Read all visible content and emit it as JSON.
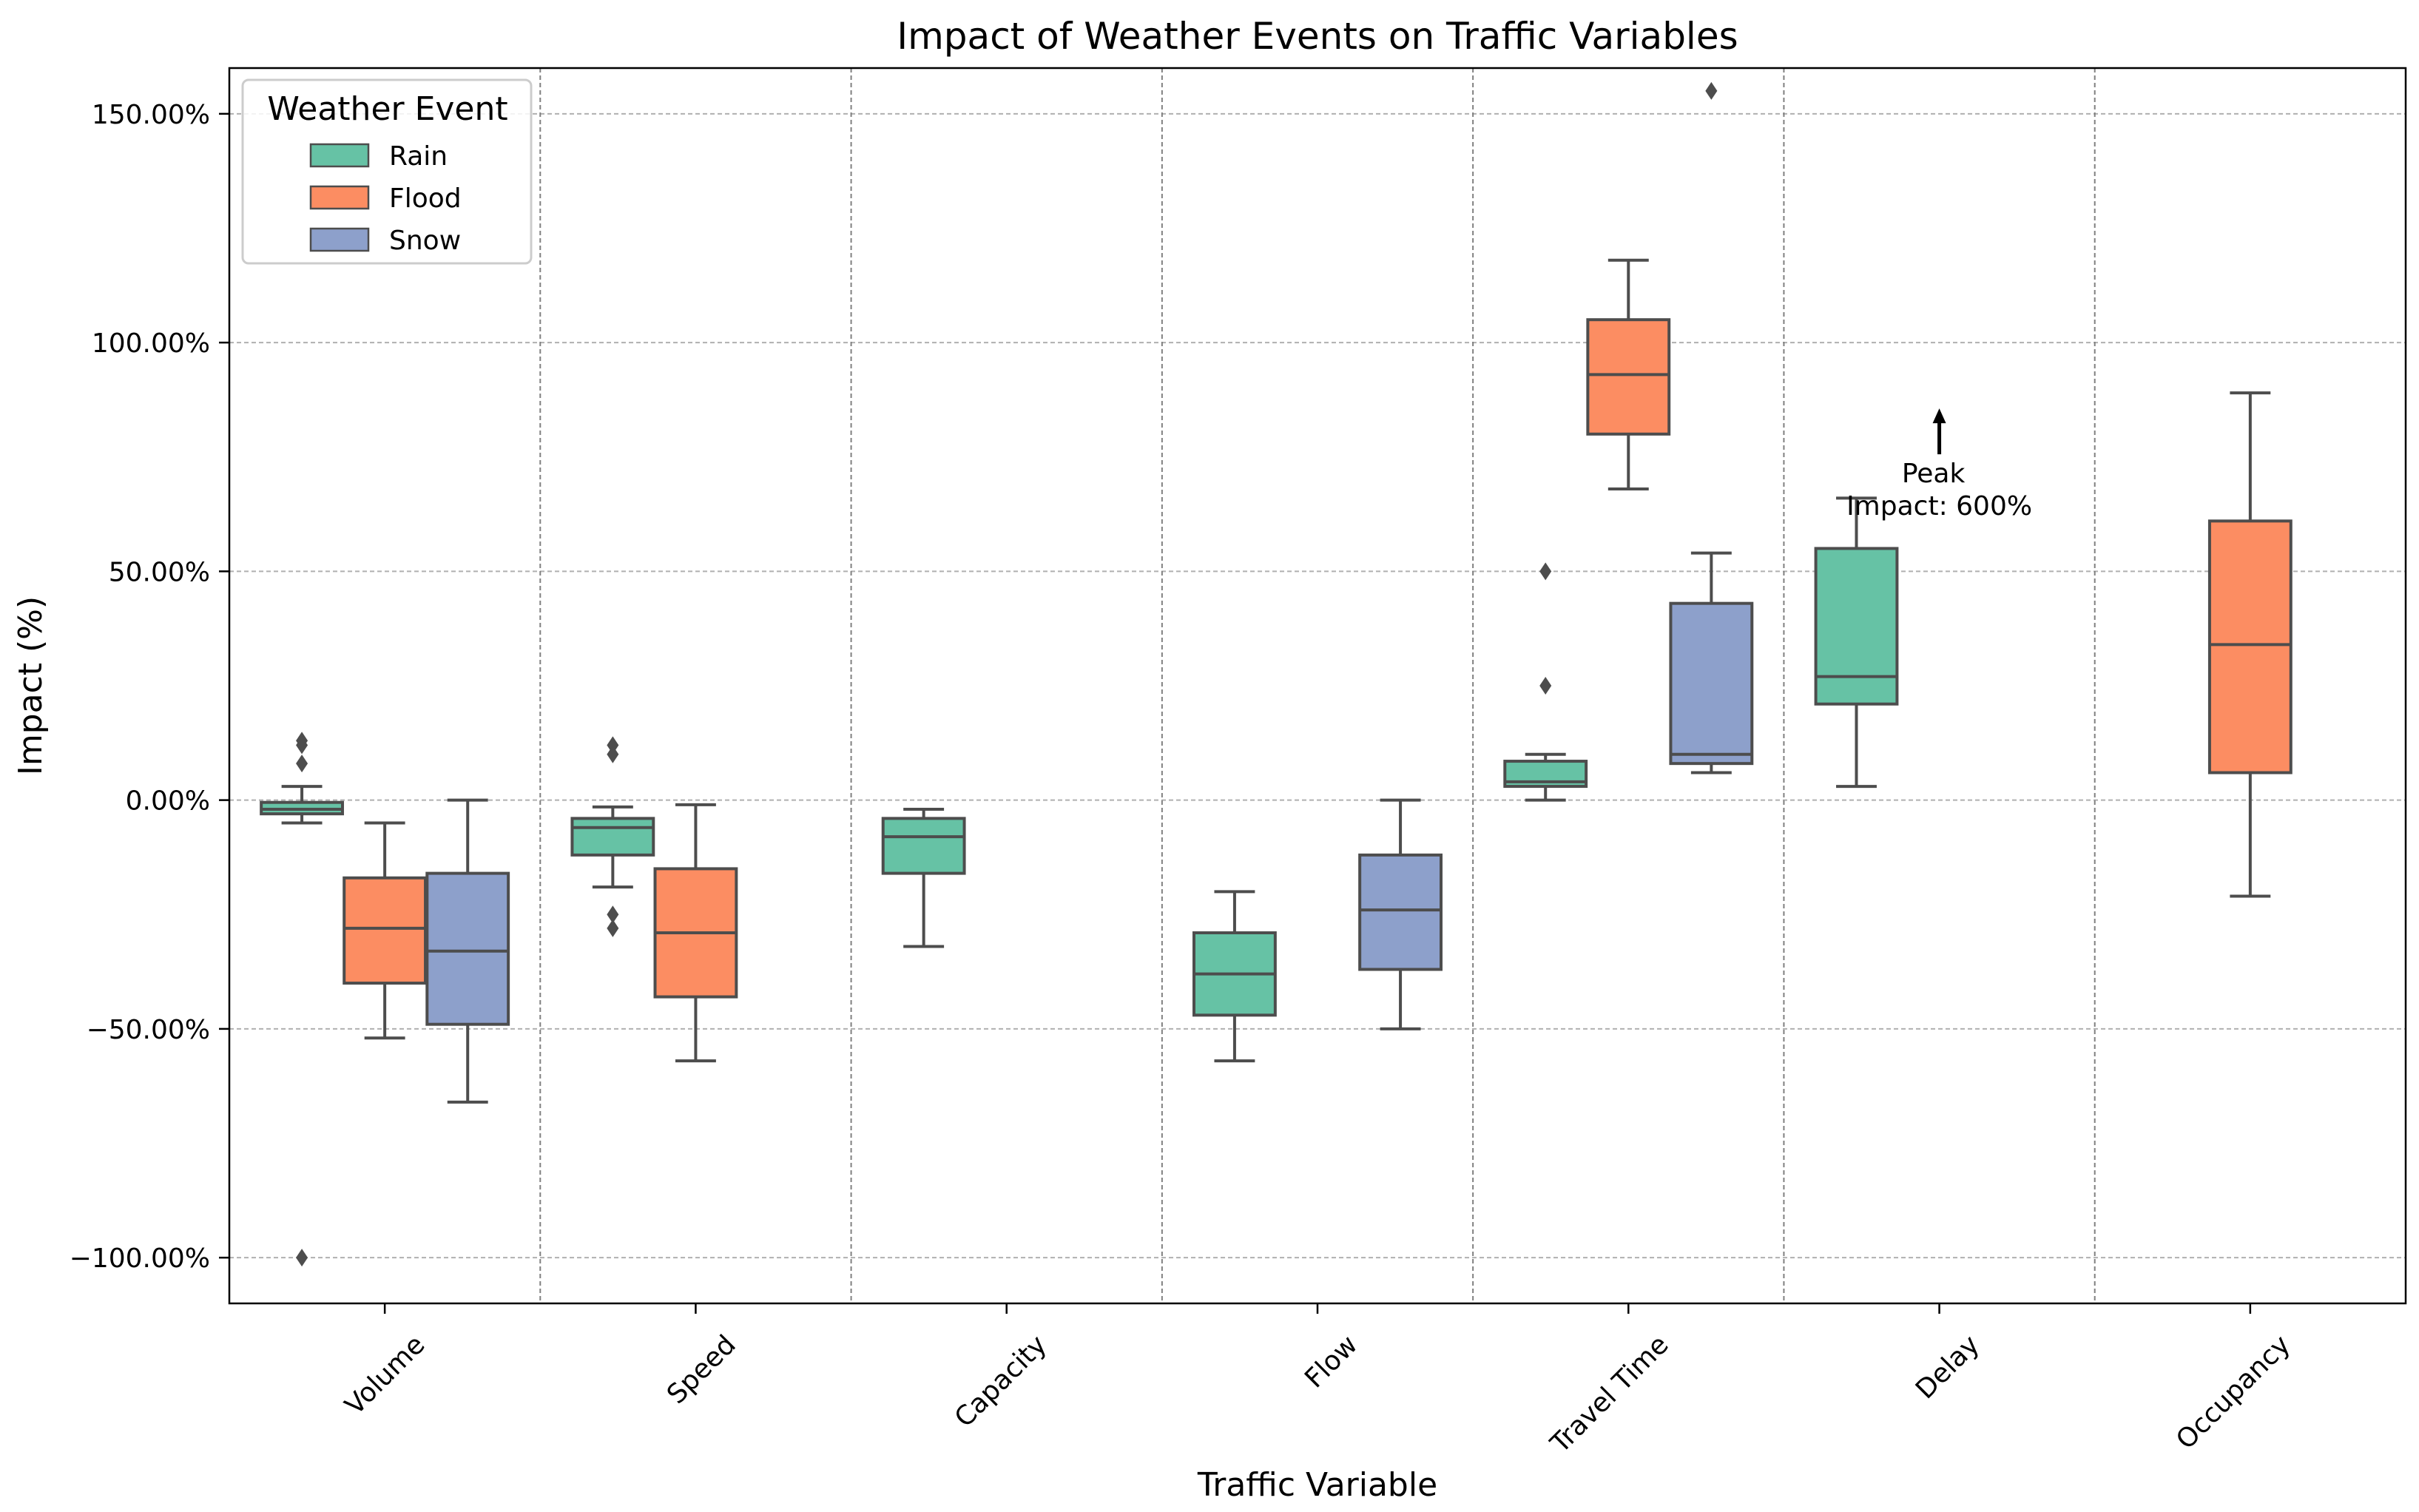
{
  "chart_data": {
    "type": "box",
    "title": "Impact of Weather Events on Traffic Variables",
    "xlabel": "Traffic Variable",
    "ylabel": "Impact (%)",
    "ylim": [
      -110,
      160
    ],
    "yticks": [
      -100,
      -50,
      0,
      50,
      100,
      150
    ],
    "ytick_labels": [
      "−100.00%",
      "−50.00%",
      "0.00%",
      "50.00%",
      "100.00%",
      "150.00%"
    ],
    "categories": [
      "Volume",
      "Speed",
      "Capacity",
      "Flow",
      "Travel Time",
      "Delay",
      "Occupancy"
    ],
    "legend": {
      "title": "Weather Event",
      "position": "top-left",
      "entries": [
        {
          "name": "Rain",
          "color": "#66c2a5"
        },
        {
          "name": "Flood",
          "color": "#fc8d62"
        },
        {
          "name": "Snow",
          "color": "#8da0cb"
        }
      ]
    },
    "series": [
      {
        "name": "Rain",
        "color": "#66c2a5",
        "boxes": [
          {
            "category": "Volume",
            "whisker_low": -5,
            "q1": -3,
            "median": -2,
            "q3": -0.5,
            "whisker_high": 3,
            "outliers": [
              13,
              12,
              8,
              -100
            ]
          },
          {
            "category": "Speed",
            "whisker_low": -19,
            "q1": -12,
            "median": -6,
            "q3": -4,
            "whisker_high": -1.5,
            "outliers": [
              12,
              10,
              -25,
              -28
            ]
          },
          {
            "category": "Capacity",
            "whisker_low": -32,
            "q1": -16,
            "median": -8,
            "q3": -4,
            "whisker_high": -2,
            "outliers": []
          },
          {
            "category": "Flow",
            "whisker_low": -57,
            "q1": -47,
            "median": -38,
            "q3": -29,
            "whisker_high": -20,
            "outliers": []
          },
          {
            "category": "Travel Time",
            "whisker_low": 0,
            "q1": 3,
            "median": 4,
            "q3": 8.5,
            "whisker_high": 10,
            "outliers": [
              50,
              25
            ]
          },
          {
            "category": "Delay",
            "whisker_low": 3,
            "q1": 21,
            "median": 27,
            "q3": 55,
            "whisker_high": 66,
            "outliers": []
          }
        ]
      },
      {
        "name": "Flood",
        "color": "#fc8d62",
        "boxes": [
          {
            "category": "Volume",
            "whisker_low": -52,
            "q1": -40,
            "median": -28,
            "q3": -17,
            "whisker_high": -5,
            "outliers": []
          },
          {
            "category": "Speed",
            "whisker_low": -57,
            "q1": -43,
            "median": -29,
            "q3": -15,
            "whisker_high": -1,
            "outliers": []
          },
          {
            "category": "Travel Time",
            "whisker_low": 68,
            "q1": 80,
            "median": 93,
            "q3": 105,
            "whisker_high": 118,
            "outliers": []
          },
          {
            "category": "Occupancy",
            "whisker_low": -21,
            "q1": 6,
            "median": 34,
            "q3": 61,
            "whisker_high": 89,
            "outliers": []
          }
        ]
      },
      {
        "name": "Snow",
        "color": "#8da0cb",
        "boxes": [
          {
            "category": "Volume",
            "whisker_low": -66,
            "q1": -49,
            "median": -33,
            "q3": -16,
            "whisker_high": 0,
            "outliers": []
          },
          {
            "category": "Flow",
            "whisker_low": -50,
            "q1": -37,
            "median": -24,
            "q3": -12,
            "whisker_high": 0,
            "outliers": []
          },
          {
            "category": "Travel Time",
            "whisker_low": 6,
            "q1": 8,
            "median": 10,
            "q3": 43,
            "whisker_high": 54,
            "outliers": [
              155
            ]
          }
        ]
      }
    ],
    "annotations": [
      {
        "category": "Delay",
        "text_line1": "Peak",
        "text_line2": "Impact: 600%",
        "arrow": "up",
        "value": 84
      }
    ],
    "grid": true
  }
}
